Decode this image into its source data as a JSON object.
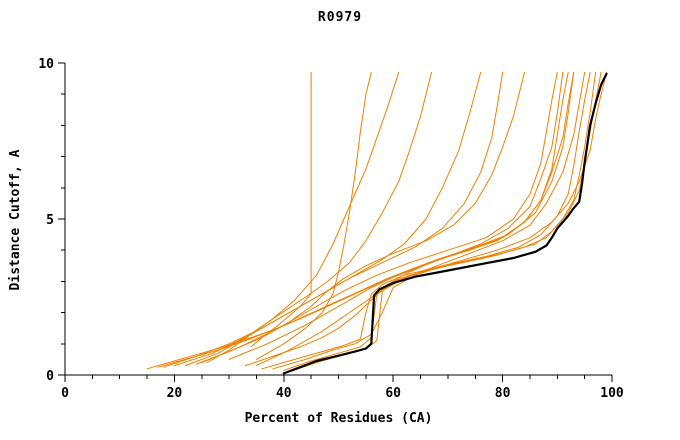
{
  "title": "R0979",
  "axes": {
    "xlabel": "Percent of Residues (CA)",
    "ylabel": "Distance Cutoff, A"
  },
  "chart_data": {
    "type": "line",
    "title": "R0979",
    "xlabel": "Percent of Residues (CA)",
    "ylabel": "Distance Cutoff, A",
    "xlim": [
      0,
      100
    ],
    "ylim": [
      0,
      10
    ],
    "xticks": [
      0,
      20,
      40,
      60,
      80,
      100
    ],
    "yticks": [
      0,
      5,
      10
    ],
    "grid": false,
    "legend": "none",
    "colors": {
      "models": "#ee8000",
      "highlight": "#000000"
    },
    "series": [
      {
        "name": "model-01",
        "color_role": "models",
        "width": 1,
        "points": [
          [
            34,
            0.9
          ],
          [
            36,
            1.2
          ],
          [
            39,
            1.6
          ],
          [
            41,
            1.9
          ],
          [
            43,
            2.2
          ],
          [
            44,
            2.4
          ],
          [
            45,
            2.6
          ],
          [
            45,
            9.7
          ]
        ]
      },
      {
        "name": "model-02",
        "color_role": "models",
        "width": 1,
        "points": [
          [
            26,
            0.4
          ],
          [
            30,
            0.8
          ],
          [
            34,
            1.3
          ],
          [
            38,
            1.8
          ],
          [
            42,
            2.4
          ],
          [
            46,
            3.2
          ],
          [
            49,
            4.2
          ],
          [
            51,
            5.0
          ],
          [
            53,
            5.8
          ],
          [
            55,
            6.6
          ],
          [
            57,
            7.6
          ],
          [
            59,
            8.6
          ],
          [
            61,
            9.7
          ]
        ]
      },
      {
        "name": "model-03",
        "color_role": "models",
        "width": 1,
        "points": [
          [
            22,
            0.3
          ],
          [
            28,
            0.7
          ],
          [
            33,
            1.2
          ],
          [
            38,
            1.8
          ],
          [
            44,
            2.5
          ],
          [
            48,
            3.0
          ],
          [
            52,
            3.6
          ],
          [
            55,
            4.3
          ],
          [
            58,
            5.2
          ],
          [
            61,
            6.2
          ],
          [
            63,
            7.2
          ],
          [
            65,
            8.3
          ],
          [
            67,
            9.7
          ]
        ]
      },
      {
        "name": "model-04",
        "color_role": "models",
        "width": 1,
        "points": [
          [
            18,
            0.25
          ],
          [
            24,
            0.6
          ],
          [
            30,
            1.0
          ],
          [
            36,
            1.5
          ],
          [
            42,
            2.1
          ],
          [
            48,
            2.7
          ],
          [
            53,
            3.2
          ],
          [
            58,
            3.7
          ],
          [
            62,
            4.2
          ],
          [
            66,
            5.0
          ],
          [
            69,
            6.0
          ],
          [
            72,
            7.2
          ],
          [
            74,
            8.4
          ],
          [
            76,
            9.7
          ]
        ]
      },
      {
        "name": "model-05",
        "color_role": "models",
        "width": 1,
        "points": [
          [
            20,
            0.3
          ],
          [
            27,
            0.7
          ],
          [
            34,
            1.3
          ],
          [
            40,
            1.9
          ],
          [
            46,
            2.5
          ],
          [
            52,
            3.1
          ],
          [
            58,
            3.6
          ],
          [
            64,
            4.1
          ],
          [
            69,
            4.7
          ],
          [
            73,
            5.5
          ],
          [
            76,
            6.5
          ],
          [
            78,
            7.6
          ],
          [
            79,
            8.6
          ],
          [
            80,
            9.7
          ]
        ]
      },
      {
        "name": "model-06",
        "color_role": "models",
        "width": 1,
        "points": [
          [
            25,
            0.4
          ],
          [
            32,
            0.9
          ],
          [
            39,
            1.5
          ],
          [
            45,
            2.1
          ],
          [
            51,
            2.7
          ],
          [
            57,
            3.2
          ],
          [
            63,
            3.6
          ],
          [
            70,
            4.0
          ],
          [
            77,
            4.4
          ],
          [
            82,
            5.0
          ],
          [
            85,
            5.8
          ],
          [
            87,
            6.8
          ],
          [
            88,
            7.8
          ],
          [
            89,
            8.8
          ],
          [
            90,
            9.7
          ]
        ]
      },
      {
        "name": "model-07",
        "color_role": "models",
        "width": 1,
        "points": [
          [
            30,
            0.5
          ],
          [
            37,
            1.0
          ],
          [
            44,
            1.6
          ],
          [
            50,
            2.2
          ],
          [
            56,
            2.8
          ],
          [
            62,
            3.3
          ],
          [
            68,
            3.7
          ],
          [
            75,
            4.1
          ],
          [
            81,
            4.5
          ],
          [
            86,
            5.2
          ],
          [
            89,
            6.2
          ],
          [
            91,
            7.3
          ],
          [
            92,
            8.4
          ],
          [
            93,
            9.7
          ]
        ]
      },
      {
        "name": "model-08",
        "color_role": "models",
        "width": 1,
        "points": [
          [
            35,
            0.3
          ],
          [
            41,
            0.8
          ],
          [
            47,
            1.4
          ],
          [
            52,
            2.0
          ],
          [
            57,
            2.6
          ],
          [
            62,
            3.1
          ],
          [
            68,
            3.5
          ],
          [
            74,
            3.9
          ],
          [
            80,
            4.3
          ],
          [
            85,
            4.8
          ],
          [
            88,
            5.5
          ],
          [
            91,
            6.5
          ],
          [
            93,
            7.7
          ],
          [
            94,
            8.7
          ],
          [
            95,
            9.7
          ]
        ]
      },
      {
        "name": "model-09",
        "color_role": "models",
        "width": 1,
        "points": [
          [
            40,
            0.15
          ],
          [
            45,
            0.45
          ],
          [
            50,
            0.7
          ],
          [
            54,
            0.9
          ],
          [
            56,
            1.2
          ],
          [
            57,
            2.6
          ],
          [
            59,
            2.9
          ],
          [
            63,
            3.2
          ],
          [
            70,
            3.5
          ],
          [
            78,
            3.8
          ],
          [
            84,
            4.1
          ],
          [
            88,
            4.4
          ],
          [
            91,
            5.0
          ],
          [
            93,
            5.6
          ],
          [
            94,
            6.4
          ],
          [
            95,
            7.3
          ],
          [
            96,
            8.4
          ],
          [
            97,
            9.7
          ]
        ]
      },
      {
        "name": "model-10",
        "color_role": "models",
        "width": 1,
        "points": [
          [
            41,
            0.1
          ],
          [
            46,
            0.4
          ],
          [
            51,
            0.65
          ],
          [
            55,
            0.85
          ],
          [
            57,
            1.1
          ],
          [
            58,
            2.7
          ],
          [
            60,
            3.0
          ],
          [
            65,
            3.3
          ],
          [
            72,
            3.6
          ],
          [
            80,
            3.9
          ],
          [
            86,
            4.2
          ],
          [
            89,
            4.6
          ],
          [
            92,
            5.2
          ],
          [
            94,
            5.9
          ],
          [
            95,
            6.8
          ],
          [
            96,
            7.8
          ],
          [
            97,
            8.8
          ],
          [
            98,
            9.7
          ]
        ]
      },
      {
        "name": "model-11",
        "color_role": "models",
        "width": 1,
        "points": [
          [
            38,
            0.2
          ],
          [
            44,
            0.5
          ],
          [
            49,
            0.8
          ],
          [
            53,
            1.0
          ],
          [
            56,
            1.3
          ],
          [
            58,
            2.0
          ],
          [
            60,
            2.8
          ],
          [
            64,
            3.2
          ],
          [
            71,
            3.6
          ],
          [
            79,
            4.0
          ],
          [
            85,
            4.4
          ],
          [
            89,
            4.9
          ],
          [
            92,
            5.5
          ],
          [
            94,
            6.2
          ],
          [
            96,
            7.2
          ],
          [
            97,
            8.2
          ],
          [
            98,
            9.0
          ],
          [
            99,
            9.7
          ]
        ]
      },
      {
        "name": "model-12",
        "color_role": "models",
        "width": 1,
        "points": [
          [
            15,
            0.2
          ],
          [
            19,
            0.4
          ],
          [
            24,
            0.65
          ],
          [
            29,
            0.9
          ],
          [
            34,
            1.2
          ],
          [
            39,
            1.5
          ],
          [
            44,
            1.9
          ],
          [
            49,
            2.3
          ],
          [
            54,
            2.7
          ],
          [
            59,
            3.1
          ],
          [
            65,
            3.5
          ],
          [
            72,
            3.9
          ],
          [
            79,
            4.3
          ],
          [
            84,
            4.9
          ],
          [
            87,
            5.6
          ],
          [
            89,
            6.5
          ],
          [
            91,
            7.6
          ],
          [
            92,
            8.7
          ],
          [
            93,
            9.7
          ]
        ]
      },
      {
        "name": "model-13",
        "color_role": "models",
        "width": 1,
        "points": [
          [
            17,
            0.25
          ],
          [
            22,
            0.5
          ],
          [
            28,
            0.8
          ],
          [
            33,
            1.1
          ],
          [
            38,
            1.45
          ],
          [
            43,
            1.8
          ],
          [
            48,
            2.2
          ],
          [
            53,
            2.6
          ],
          [
            58,
            3.0
          ],
          [
            64,
            3.4
          ],
          [
            70,
            3.8
          ],
          [
            76,
            4.2
          ],
          [
            81,
            4.7
          ],
          [
            85,
            5.4
          ],
          [
            87,
            6.3
          ],
          [
            89,
            7.3
          ],
          [
            90,
            8.4
          ],
          [
            91,
            9.7
          ]
        ]
      },
      {
        "name": "model-14",
        "color_role": "models",
        "width": 1,
        "points": [
          [
            36,
            0.2
          ],
          [
            42,
            0.5
          ],
          [
            47,
            0.75
          ],
          [
            51,
            0.95
          ],
          [
            54,
            1.15
          ],
          [
            55,
            2.0
          ],
          [
            56,
            2.6
          ],
          [
            58,
            2.9
          ],
          [
            62,
            3.2
          ],
          [
            69,
            3.5
          ],
          [
            77,
            3.8
          ],
          [
            83,
            4.1
          ],
          [
            87,
            4.5
          ],
          [
            90,
            5.1
          ],
          [
            92,
            5.8
          ],
          [
            93,
            6.7
          ],
          [
            94,
            7.8
          ],
          [
            95,
            8.8
          ],
          [
            96,
            9.7
          ]
        ]
      },
      {
        "name": "model-15",
        "color_role": "models",
        "width": 1,
        "points": [
          [
            33,
            0.3
          ],
          [
            38,
            0.6
          ],
          [
            43,
            0.9
          ],
          [
            47,
            1.2
          ],
          [
            50,
            1.5
          ],
          [
            53,
            1.9
          ],
          [
            56,
            2.4
          ],
          [
            59,
            2.9
          ],
          [
            63,
            3.3
          ],
          [
            68,
            3.7
          ],
          [
            74,
            4.0
          ],
          [
            80,
            4.4
          ],
          [
            84,
            4.9
          ],
          [
            87,
            5.6
          ],
          [
            89,
            6.6
          ],
          [
            90,
            7.7
          ],
          [
            91,
            8.8
          ],
          [
            92,
            9.7
          ]
        ]
      },
      {
        "name": "model-16",
        "color_role": "models",
        "width": 1,
        "points": [
          [
            24,
            0.35
          ],
          [
            30,
            0.75
          ],
          [
            36,
            1.2
          ],
          [
            41,
            1.7
          ],
          [
            45,
            2.2
          ],
          [
            48,
            2.7
          ],
          [
            51,
            3.1
          ],
          [
            55,
            3.5
          ],
          [
            60,
            3.9
          ],
          [
            66,
            4.3
          ],
          [
            71,
            4.8
          ],
          [
            75,
            5.5
          ],
          [
            78,
            6.4
          ],
          [
            80,
            7.3
          ],
          [
            82,
            8.3
          ],
          [
            84,
            9.7
          ]
        ]
      },
      {
        "name": "model-17",
        "color_role": "models",
        "width": 1,
        "points": [
          [
            35,
            0.5
          ],
          [
            40,
            1.0
          ],
          [
            44,
            1.5
          ],
          [
            47,
            2.0
          ],
          [
            49,
            2.6
          ],
          [
            50,
            3.3
          ],
          [
            51,
            4.2
          ],
          [
            52,
            5.2
          ],
          [
            53,
            6.4
          ],
          [
            54,
            7.8
          ],
          [
            55,
            9.0
          ],
          [
            56,
            9.7
          ]
        ]
      },
      {
        "name": "best-model",
        "color_role": "highlight",
        "width": 2.2,
        "points": [
          [
            40,
            0.05
          ],
          [
            43,
            0.25
          ],
          [
            46,
            0.45
          ],
          [
            50,
            0.62
          ],
          [
            53,
            0.75
          ],
          [
            55,
            0.85
          ],
          [
            56,
            1.0
          ],
          [
            56.5,
            2.55
          ],
          [
            57.5,
            2.75
          ],
          [
            60,
            2.95
          ],
          [
            64,
            3.15
          ],
          [
            70,
            3.35
          ],
          [
            76,
            3.55
          ],
          [
            82,
            3.75
          ],
          [
            86,
            3.95
          ],
          [
            88,
            4.15
          ],
          [
            89,
            4.4
          ],
          [
            90,
            4.7
          ],
          [
            92,
            5.1
          ],
          [
            93,
            5.35
          ],
          [
            94,
            5.55
          ],
          [
            94.5,
            6.1
          ],
          [
            95,
            6.8
          ],
          [
            95.5,
            7.4
          ],
          [
            96,
            8.0
          ],
          [
            97,
            8.7
          ],
          [
            98,
            9.3
          ],
          [
            99,
            9.65
          ]
        ]
      }
    ]
  }
}
